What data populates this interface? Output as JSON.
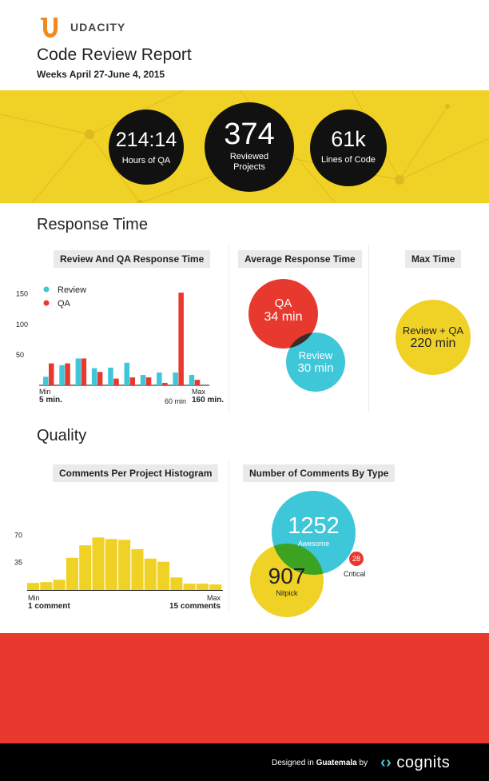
{
  "header": {
    "brand": "UDACITY",
    "title": "Code Review Report",
    "subtitle": "Weeks April 27-June 4, 2015"
  },
  "stats": {
    "hours_value": "214:14",
    "hours_label": "Hours of QA",
    "projects_value": "374",
    "projects_label_1": "Reviewed",
    "projects_label_2": "Projects",
    "lines_value": "61k",
    "lines_label": "Lines of Code"
  },
  "response": {
    "section_title": "Response Time",
    "chart_title": "Review And QA Response Time",
    "avg_title": "Average Response Time",
    "max_title": "Max Time",
    "qa_label": "QA",
    "qa_value": "34 min",
    "review_label": "Review",
    "review_value": "30 min",
    "max_label": "Review + QA",
    "max_value": "220 min",
    "min_label": "Min",
    "min_value": "5 min.",
    "max_axis_label": "Max",
    "max_axis_value": "160 min.",
    "peak_label": "60 min"
  },
  "quality": {
    "section_title": "Quality",
    "hist_title": "Comments Per Project Histogram",
    "types_title": "Number of Comments By Type",
    "min_label": "Min",
    "min_value": "1 comment",
    "max_label": "Max",
    "max_value": "15 comments",
    "awesome_value": "1252",
    "awesome_label": "Awesome",
    "nitpick_value": "907",
    "nitpick_label": "Nitpick",
    "critical_value": "28",
    "critical_label": "Critical"
  },
  "footer": {
    "designed_in": "Designed in",
    "place": "Guatemala",
    "by": "by",
    "company": "cognits"
  },
  "colors": {
    "yellow": "#f0d226",
    "red": "#e8392f",
    "cyan": "#3ec6d9",
    "orange": "#f08a1c",
    "black": "#111111"
  },
  "chart_data": [
    {
      "type": "bar",
      "title": "Review And QA Response Time",
      "ylim": [
        0,
        160
      ],
      "yticks": [
        50,
        100,
        150
      ],
      "legend": "top-left",
      "series": [
        {
          "name": "Review",
          "color": "#3ec6d9",
          "values": [
            14,
            33,
            44,
            28,
            29,
            37,
            17,
            21,
            21,
            17
          ]
        },
        {
          "name": "QA",
          "color": "#e8392f",
          "values": [
            36,
            36,
            44,
            22,
            11,
            13,
            13,
            4,
            152,
            9
          ]
        }
      ]
    },
    {
      "type": "bar",
      "title": "Comments Per Project Histogram",
      "ylim": [
        0,
        80
      ],
      "yticks": [
        35,
        70
      ],
      "color": "#f0d226",
      "values": [
        9,
        10,
        13,
        41,
        57,
        67,
        65,
        64,
        52,
        40,
        36,
        16,
        8,
        8,
        7
      ]
    }
  ]
}
